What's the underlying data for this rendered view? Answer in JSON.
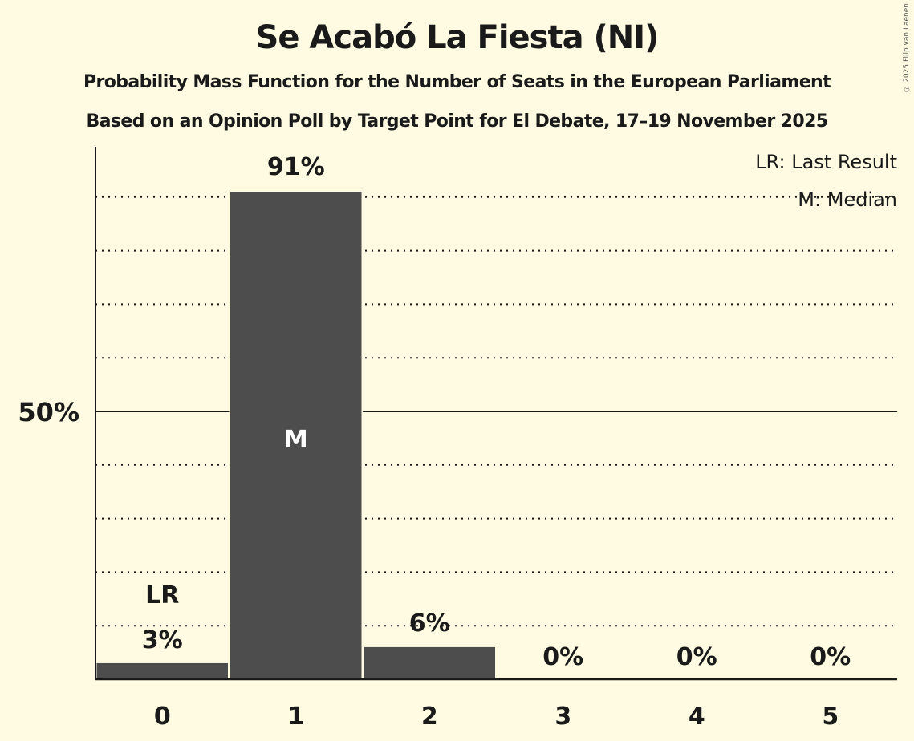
{
  "header": {
    "title": "Se Acabó La Fiesta (NI)",
    "subtitle": "Probability Mass Function for the Number of Seats in the European Parliament",
    "source": "Based on an Opinion Poll by Target Point for El Debate, 17–19 November 2025",
    "copyright": "© 2025 Filip van Laenen"
  },
  "legend": {
    "lr": "LR: Last Result",
    "m": "M: Median"
  },
  "colors": {
    "background": "#fefbe2",
    "bar": "#4d4d4d",
    "text": "#1a1a1a"
  },
  "chart_data": {
    "type": "bar",
    "title": "Se Acabó La Fiesta (NI)",
    "subtitle": "Probability Mass Function for the Number of Seats in the European Parliament",
    "xlabel": "",
    "ylabel": "",
    "categories": [
      "0",
      "1",
      "2",
      "3",
      "4",
      "5"
    ],
    "values": [
      3,
      91,
      6,
      0,
      0,
      0
    ],
    "value_labels": [
      "3%",
      "91%",
      "6%",
      "0%",
      "0%",
      "0%"
    ],
    "unit": "%",
    "ylim": [
      0,
      100
    ],
    "y_ticks": [
      {
        "value": 50,
        "label": "50%"
      }
    ],
    "grid": {
      "dotted_every": 10,
      "solid_at": 50
    },
    "annotations": [
      {
        "category": "0",
        "text": "LR",
        "meaning": "Last Result"
      },
      {
        "category": "1",
        "text": "M",
        "meaning": "Median"
      }
    ],
    "legend_position": "top-right",
    "legend_entries": [
      "LR: Last Result",
      "M: Median"
    ]
  }
}
